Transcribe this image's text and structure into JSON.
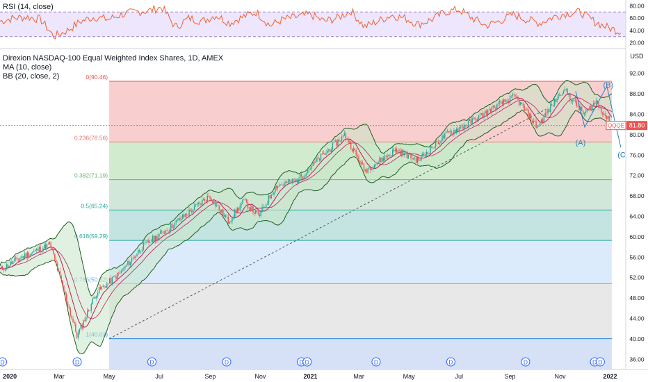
{
  "rsi_legend": "RSI (14, close)",
  "main_legend": {
    "title": "Direxion NASDAQ-100 Equal Weighted Index Shares, 1D, AMEX",
    "ma": "MA (10, close)",
    "bb": "BB (20, close, 2)"
  },
  "rsi_axis_ticks": [
    "80.00",
    "60.00",
    "40.00",
    "20.00"
  ],
  "price_axis_unit": "USD",
  "price_axis_ticks": [
    "92.00",
    "88.00",
    "84.00",
    "80.00",
    "76.00",
    "72.00",
    "68.00",
    "64.00",
    "60.00",
    "56.00",
    "52.00",
    "48.00",
    "44.00",
    "40.00",
    "36.00"
  ],
  "time_axis_ticks": [
    "2020",
    "Mar",
    "May",
    "Jul",
    "Sep",
    "Nov",
    "2021",
    "Mar",
    "May",
    "Jul",
    "Sep",
    "Nov",
    "2022"
  ],
  "price_tag": {
    "symbol": "QQQE",
    "value": "81.80"
  },
  "wave_labels": [
    "(A)",
    "(B)",
    "(C)"
  ],
  "dividend_marker": "D",
  "colors": {
    "rsi_line": "#f1612f",
    "rsi_band": "#e1d5fa",
    "ma_line": "#c2185b",
    "bb_line": "#1b5e20",
    "bb_fill": "#c8e6c9",
    "candle_up": "#26a69a",
    "candle_down": "#ef5350",
    "fib_0": "#f8c6c6",
    "fib_236": "#c9e8c6",
    "fib_382": "#c9e3d2",
    "fib_5": "#b9dfdb",
    "fib_618": "#d5e8fb",
    "fib_786": "#e4e4e4",
    "fib_1": "#cfdcf7",
    "wave": "#2a7fbf",
    "price_tag": "#ef5350"
  },
  "chart_data": {
    "type": "candlestick",
    "title": "Direxion NASDAQ-100 Equal Weighted Index Shares, 1D, AMEX",
    "ylabel": "USD",
    "ylim": [
      34,
      95.5
    ],
    "x_range": [
      "2019-12-20",
      "2022-01-20"
    ],
    "price_series_approx": {
      "dates": [
        "2019-12-20",
        "2020-01-15",
        "2020-02-19",
        "2020-03-23",
        "2020-04-15",
        "2020-05-15",
        "2020-06-10",
        "2020-07-15",
        "2020-08-31",
        "2020-09-23",
        "2020-10-12",
        "2020-10-30",
        "2020-11-20",
        "2020-12-15",
        "2021-01-10",
        "2021-02-12",
        "2021-03-08",
        "2021-04-15",
        "2021-05-12",
        "2021-06-15",
        "2021-07-10",
        "2021-08-20",
        "2021-09-07",
        "2021-10-04",
        "2021-11-05",
        "2021-11-30",
        "2021-12-15",
        "2022-01-03"
      ],
      "close": [
        53.5,
        56,
        58.5,
        40.5,
        49,
        53,
        58,
        62,
        68,
        63,
        67,
        64,
        70,
        71,
        75,
        80,
        73,
        77,
        75,
        80,
        82,
        86,
        87.5,
        81.5,
        89,
        84,
        86.5,
        81.8
      ]
    },
    "last_price": 81.8,
    "fibonacci": [
      {
        "level": "0",
        "value": 90.46,
        "label": "0(90.46)"
      },
      {
        "level": "0.236",
        "value": 78.56,
        "label": "0.236(78.56)"
      },
      {
        "level": "0.382",
        "value": 71.19,
        "label": "0.382(71.19)"
      },
      {
        "level": "0.5",
        "value": 65.24,
        "label": "0.5(65.24)"
      },
      {
        "level": "0.618",
        "value": 59.29,
        "label": "0.618(59.29)"
      },
      {
        "level": "0.786",
        "value": 50.82,
        "label": "0.786(50.82)"
      },
      {
        "level": "1",
        "value": 40.03,
        "label": "1(40.03)"
      }
    ],
    "rsi": {
      "ylim": [
        15,
        85
      ],
      "band": [
        30,
        70
      ],
      "values_approx": [
        55,
        60,
        62,
        58,
        30,
        40,
        55,
        62,
        58,
        66,
        70,
        72,
        78,
        45,
        60,
        55,
        65,
        52,
        62,
        70,
        48,
        58,
        62,
        66,
        55,
        60,
        72,
        46,
        55,
        65,
        60,
        50,
        58,
        70,
        74,
        60,
        48,
        55,
        66,
        58,
        52,
        62,
        68,
        70,
        55,
        45,
        38
      ]
    },
    "elliott_wave": [
      {
        "label": "(A)",
        "date": "2021-12-01",
        "value": 81.5
      },
      {
        "label": "(B)",
        "date": "2021-12-28",
        "value": 89.5
      },
      {
        "label": "(C)",
        "date": "2022-01-14",
        "value": 77.5
      }
    ],
    "dividend_dates": [
      "2019-12-23",
      "2020-03-23",
      "2020-06-22",
      "2020-09-21",
      "2020-12-21",
      "2020-12-28",
      "2021-03-22",
      "2021-06-21",
      "2021-09-20",
      "2021-12-13",
      "2021-12-20"
    ]
  }
}
